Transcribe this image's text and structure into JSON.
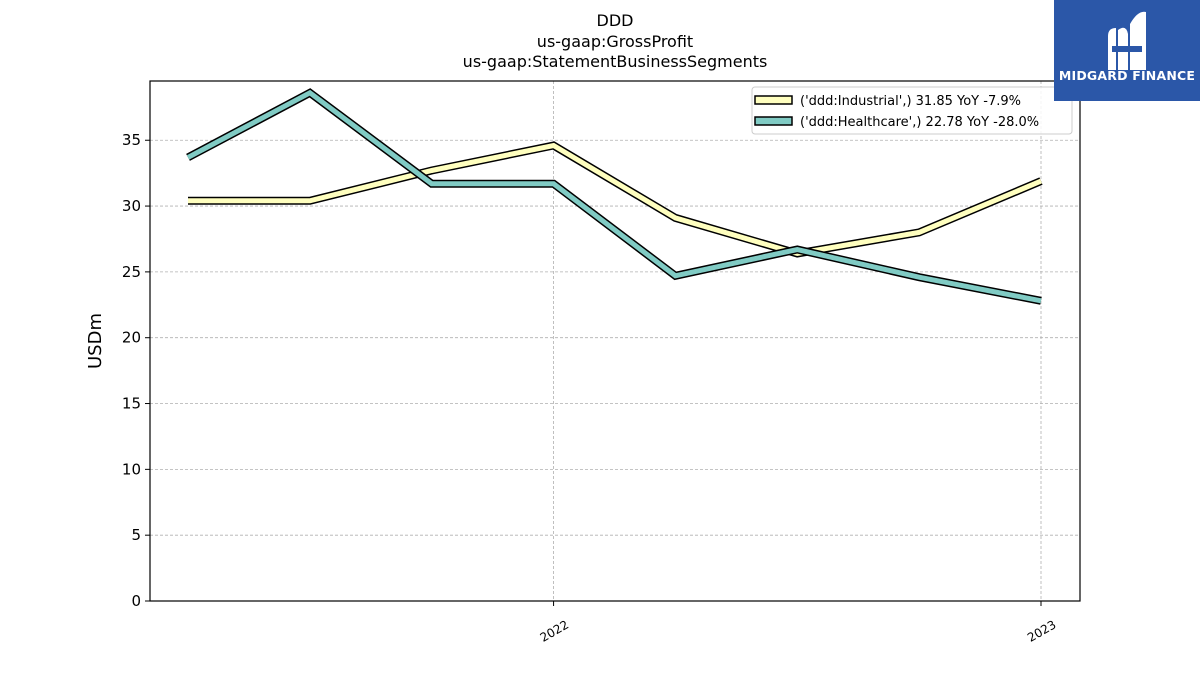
{
  "title_lines": [
    "DDD",
    "us-gaap:GrossProfit",
    "us-gaap:StatementBusinessSegments"
  ],
  "logo": {
    "text": "MIDGARD FINANCE",
    "color": "#2b57a8"
  },
  "chart_data": {
    "type": "line",
    "ylabel": "USDm",
    "xlabel": "",
    "ylim": [
      0,
      39.5
    ],
    "yticks": [
      0,
      5,
      10,
      15,
      20,
      25,
      30,
      35
    ],
    "xticks": [
      {
        "label": "2022",
        "index": 3
      },
      {
        "label": "2023",
        "index": 7
      }
    ],
    "grid": true,
    "legend_position": "top-right",
    "series": [
      {
        "name": "('ddd:Industrial',) 31.85 YoY -7.9%",
        "color": "#ffffbf",
        "values": [
          30.4,
          30.4,
          32.7,
          34.6,
          29.1,
          26.4,
          28.0,
          31.9
        ]
      },
      {
        "name": "('ddd:Healthcare',) 22.78 YoY -28.0%",
        "color": "#80cbc4",
        "values": [
          33.7,
          38.6,
          31.7,
          31.7,
          24.7,
          26.7,
          24.6,
          22.8
        ]
      }
    ]
  }
}
